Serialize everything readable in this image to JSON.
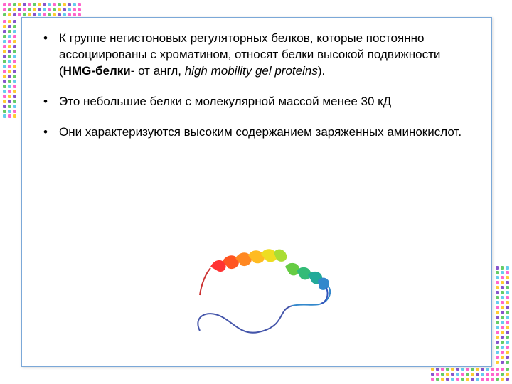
{
  "bullets": {
    "b1_a": "К группе негистоновых регуляторных белков, которые постоянно ассоциированы с хроматином, относят белки высокой подвижности (",
    "b1_bold": "HMG-белки",
    "b1_b": "- от англ, ",
    "b1_italic": "high mobility gel proteins",
    "b1_c": ").",
    "b2": " Это небольшие белки с молекулярной массой менее 30 кД",
    "b3": " Они характеризуются высоким содержанием заряженных аминокислот."
  },
  "decor": {
    "top_colors": [
      "#ff66cc",
      "#ff66cc",
      "#66cc66",
      "#ffcc33",
      "#8855cc",
      "#ff66cc",
      "#66cc66",
      "#ffcc33",
      "#8855cc",
      "#66ccee",
      "#ff66cc",
      "#66cc66",
      "#ffcc33",
      "#8855cc",
      "#66ccee",
      "#ff66cc"
    ],
    "left_colors": [
      "#ff66cc",
      "#ffcc33",
      "#8855cc",
      "#66cc66",
      "#66ccee",
      "#ff66cc",
      "#ffcc33",
      "#8855cc",
      "#66cc66",
      "#66ccee",
      "#ff66cc",
      "#ffcc33",
      "#8855cc",
      "#66cc66",
      "#66ccee",
      "#ff66cc",
      "#ffcc33",
      "#8855cc",
      "#66cc66",
      "#66ccee"
    ],
    "top_rows": 3,
    "left_cols": 3
  },
  "box": {
    "border_color": "#7ba8d8"
  },
  "protein": {
    "helix_colors": [
      "#ff3333",
      "#ff7722",
      "#ffcc22",
      "#eedd22",
      "#88cc33",
      "#44bb55",
      "#22aa88",
      "#3388cc",
      "#3355bb"
    ],
    "backbone_color": "#4455aa"
  }
}
